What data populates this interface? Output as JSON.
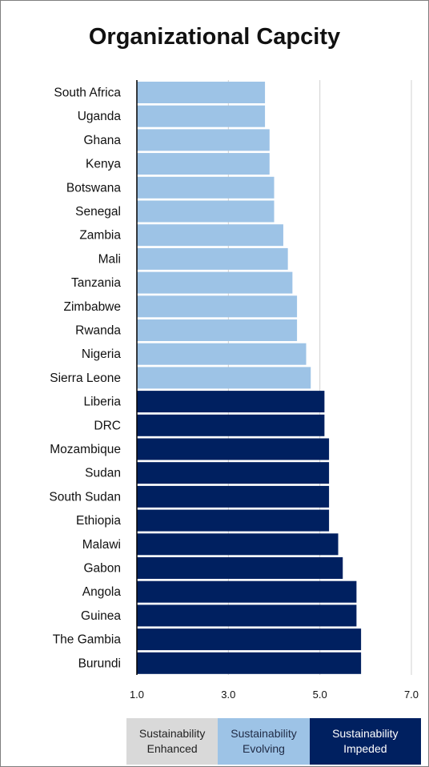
{
  "chart_data": {
    "type": "bar",
    "orientation": "horizontal",
    "title": "Organizational Capcity",
    "categories": [
      "South Africa",
      "Uganda",
      "Ghana",
      "Kenya",
      "Botswana",
      "Senegal",
      "Zambia",
      "Mali",
      "Tanzania",
      "Zimbabwe",
      "Rwanda",
      "Nigeria",
      "Sierra Leone",
      "Liberia",
      "DRC",
      "Mozambique",
      "Sudan",
      "South Sudan",
      "Ethiopia",
      "Malawi",
      "Gabon",
      "Angola",
      "Guinea",
      "The Gambia",
      "Burundi"
    ],
    "values": [
      3.8,
      3.8,
      3.9,
      3.9,
      4.0,
      4.0,
      4.2,
      4.3,
      4.4,
      4.5,
      4.5,
      4.7,
      4.8,
      5.1,
      5.1,
      5.2,
      5.2,
      5.2,
      5.2,
      5.4,
      5.5,
      5.8,
      5.8,
      5.9,
      5.9
    ],
    "xlim": [
      1.0,
      7.0
    ],
    "xticks": [
      "1.0",
      "3.0",
      "5.0",
      "7.0"
    ],
    "grid": "vertical",
    "bands": [
      {
        "label": "Sustainability\nEnhanced",
        "from": 1.0,
        "to": 3.0,
        "color": "#d9d9d9",
        "text_color": "#222222"
      },
      {
        "label": "Sustainability\nEvolving",
        "from": 3.0,
        "to": 5.0,
        "color": "#9dc3e6",
        "text_color": "#1f2a44"
      },
      {
        "label": "Sustainability\nImpeded",
        "from": 5.0,
        "to": 7.0,
        "color": "#002060",
        "text_color": "#ffffff"
      }
    ],
    "colors": {
      "evolving": "#9dc3e6",
      "impeded": "#002060",
      "grid": "#d0d0d0",
      "axis": "#000000"
    }
  }
}
